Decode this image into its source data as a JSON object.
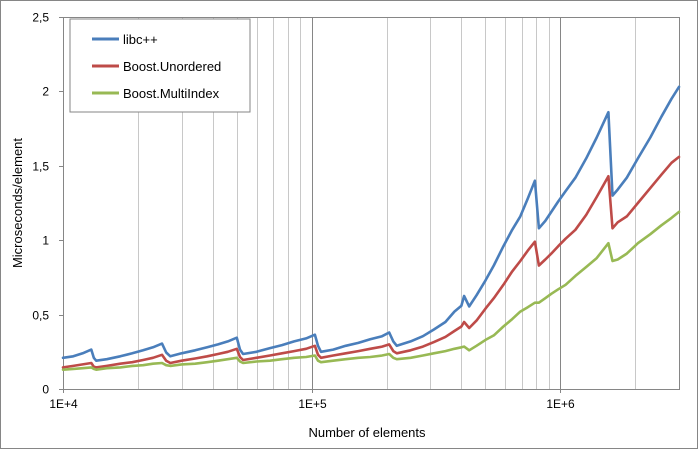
{
  "chart_data": {
    "type": "line",
    "xlabel": "Number of elements",
    "ylabel": "Microseconds/element",
    "x_scale": "log",
    "xlim": [
      10000,
      3000000
    ],
    "ylim": [
      0,
      2.5
    ],
    "x_tick_labels": [
      {
        "value": 10000,
        "label": "1E+4"
      },
      {
        "value": 100000,
        "label": "1E+5"
      },
      {
        "value": 1000000,
        "label": "1E+6"
      }
    ],
    "y_tick_labels": [
      {
        "value": 0,
        "label": "0"
      },
      {
        "value": 0.5,
        "label": "0,5"
      },
      {
        "value": 1,
        "label": "1"
      },
      {
        "value": 1.5,
        "label": "1,5"
      },
      {
        "value": 2,
        "label": "2"
      },
      {
        "value": 2.5,
        "label": "2,5"
      }
    ],
    "grid": "x major and minor gridlines",
    "legend_position": "top-left",
    "series": [
      {
        "name": "libc++",
        "color": "#4a7ebb",
        "points": [
          [
            10000,
            0.21
          ],
          [
            11000,
            0.22
          ],
          [
            12000,
            0.24
          ],
          [
            13000,
            0.265
          ],
          [
            13300,
            0.21
          ],
          [
            13600,
            0.19
          ],
          [
            15000,
            0.2
          ],
          [
            17000,
            0.22
          ],
          [
            19000,
            0.24
          ],
          [
            21000,
            0.26
          ],
          [
            23000,
            0.28
          ],
          [
            25000,
            0.305
          ],
          [
            26000,
            0.245
          ],
          [
            27000,
            0.22
          ],
          [
            30000,
            0.24
          ],
          [
            34000,
            0.26
          ],
          [
            38000,
            0.28
          ],
          [
            42000,
            0.3
          ],
          [
            46000,
            0.32
          ],
          [
            50000,
            0.345
          ],
          [
            51500,
            0.265
          ],
          [
            53000,
            0.235
          ],
          [
            60000,
            0.25
          ],
          [
            68000,
            0.275
          ],
          [
            76000,
            0.295
          ],
          [
            85000,
            0.32
          ],
          [
            95000,
            0.34
          ],
          [
            103000,
            0.365
          ],
          [
            106000,
            0.29
          ],
          [
            109000,
            0.25
          ],
          [
            122000,
            0.265
          ],
          [
            137000,
            0.29
          ],
          [
            154000,
            0.31
          ],
          [
            172000,
            0.335
          ],
          [
            192000,
            0.355
          ],
          [
            205000,
            0.38
          ],
          [
            213000,
            0.32
          ],
          [
            220000,
            0.29
          ],
          [
            250000,
            0.32
          ],
          [
            280000,
            0.355
          ],
          [
            310000,
            0.4
          ],
          [
            345000,
            0.45
          ],
          [
            375000,
            0.52
          ],
          [
            400000,
            0.56
          ],
          [
            410000,
            0.625
          ],
          [
            430000,
            0.555
          ],
          [
            460000,
            0.63
          ],
          [
            500000,
            0.73
          ],
          [
            540000,
            0.83
          ],
          [
            590000,
            0.96
          ],
          [
            640000,
            1.07
          ],
          [
            690000,
            1.16
          ],
          [
            740000,
            1.28
          ],
          [
            790000,
            1.4
          ],
          [
            820000,
            1.08
          ],
          [
            870000,
            1.13
          ],
          [
            920000,
            1.19
          ],
          [
            980000,
            1.26
          ],
          [
            1050000,
            1.33
          ],
          [
            1150000,
            1.42
          ],
          [
            1270000,
            1.55
          ],
          [
            1400000,
            1.69
          ],
          [
            1560000,
            1.86
          ],
          [
            1620000,
            1.3
          ],
          [
            1700000,
            1.34
          ],
          [
            1850000,
            1.42
          ],
          [
            2050000,
            1.55
          ],
          [
            2300000,
            1.69
          ],
          [
            2550000,
            1.83
          ],
          [
            2800000,
            1.95
          ],
          [
            3000000,
            2.03
          ]
        ]
      },
      {
        "name": "Boost.Unordered",
        "color": "#be4b48",
        "points": [
          [
            10000,
            0.145
          ],
          [
            11000,
            0.155
          ],
          [
            12000,
            0.165
          ],
          [
            13000,
            0.175
          ],
          [
            13300,
            0.15
          ],
          [
            13600,
            0.145
          ],
          [
            15000,
            0.155
          ],
          [
            17000,
            0.17
          ],
          [
            19000,
            0.18
          ],
          [
            21000,
            0.195
          ],
          [
            23000,
            0.21
          ],
          [
            25000,
            0.23
          ],
          [
            26000,
            0.19
          ],
          [
            27000,
            0.175
          ],
          [
            30000,
            0.19
          ],
          [
            34000,
            0.205
          ],
          [
            38000,
            0.22
          ],
          [
            42000,
            0.235
          ],
          [
            46000,
            0.25
          ],
          [
            50000,
            0.27
          ],
          [
            51500,
            0.215
          ],
          [
            53000,
            0.195
          ],
          [
            60000,
            0.21
          ],
          [
            68000,
            0.225
          ],
          [
            76000,
            0.24
          ],
          [
            85000,
            0.255
          ],
          [
            95000,
            0.27
          ],
          [
            103000,
            0.29
          ],
          [
            106000,
            0.23
          ],
          [
            109000,
            0.21
          ],
          [
            122000,
            0.225
          ],
          [
            137000,
            0.24
          ],
          [
            154000,
            0.255
          ],
          [
            172000,
            0.27
          ],
          [
            192000,
            0.285
          ],
          [
            205000,
            0.3
          ],
          [
            213000,
            0.255
          ],
          [
            220000,
            0.24
          ],
          [
            250000,
            0.26
          ],
          [
            280000,
            0.285
          ],
          [
            310000,
            0.315
          ],
          [
            345000,
            0.35
          ],
          [
            375000,
            0.39
          ],
          [
            400000,
            0.42
          ],
          [
            410000,
            0.45
          ],
          [
            430000,
            0.41
          ],
          [
            460000,
            0.46
          ],
          [
            500000,
            0.54
          ],
          [
            540000,
            0.61
          ],
          [
            590000,
            0.7
          ],
          [
            640000,
            0.79
          ],
          [
            690000,
            0.86
          ],
          [
            740000,
            0.93
          ],
          [
            790000,
            0.99
          ],
          [
            820000,
            0.83
          ],
          [
            870000,
            0.87
          ],
          [
            920000,
            0.91
          ],
          [
            980000,
            0.96
          ],
          [
            1050000,
            1.01
          ],
          [
            1150000,
            1.07
          ],
          [
            1270000,
            1.17
          ],
          [
            1400000,
            1.29
          ],
          [
            1560000,
            1.43
          ],
          [
            1620000,
            1.08
          ],
          [
            1700000,
            1.12
          ],
          [
            1850000,
            1.16
          ],
          [
            2050000,
            1.25
          ],
          [
            2300000,
            1.35
          ],
          [
            2550000,
            1.44
          ],
          [
            2800000,
            1.52
          ],
          [
            3000000,
            1.56
          ]
        ]
      },
      {
        "name": "Boost.MultiIndex",
        "color": "#98b954",
        "points": [
          [
            10000,
            0.13
          ],
          [
            11000,
            0.135
          ],
          [
            12000,
            0.14
          ],
          [
            13000,
            0.145
          ],
          [
            13300,
            0.135
          ],
          [
            13600,
            0.13
          ],
          [
            15000,
            0.14
          ],
          [
            17000,
            0.145
          ],
          [
            19000,
            0.155
          ],
          [
            21000,
            0.16
          ],
          [
            23000,
            0.17
          ],
          [
            25000,
            0.175
          ],
          [
            26000,
            0.16
          ],
          [
            27000,
            0.155
          ],
          [
            30000,
            0.165
          ],
          [
            34000,
            0.17
          ],
          [
            38000,
            0.18
          ],
          [
            42000,
            0.19
          ],
          [
            46000,
            0.2
          ],
          [
            50000,
            0.21
          ],
          [
            51500,
            0.185
          ],
          [
            53000,
            0.175
          ],
          [
            60000,
            0.185
          ],
          [
            68000,
            0.19
          ],
          [
            76000,
            0.2
          ],
          [
            85000,
            0.21
          ],
          [
            95000,
            0.215
          ],
          [
            103000,
            0.225
          ],
          [
            106000,
            0.19
          ],
          [
            109000,
            0.18
          ],
          [
            122000,
            0.19
          ],
          [
            137000,
            0.2
          ],
          [
            154000,
            0.21
          ],
          [
            172000,
            0.215
          ],
          [
            192000,
            0.225
          ],
          [
            205000,
            0.235
          ],
          [
            213000,
            0.21
          ],
          [
            220000,
            0.2
          ],
          [
            250000,
            0.21
          ],
          [
            280000,
            0.225
          ],
          [
            310000,
            0.24
          ],
          [
            345000,
            0.255
          ],
          [
            375000,
            0.27
          ],
          [
            400000,
            0.28
          ],
          [
            410000,
            0.285
          ],
          [
            430000,
            0.26
          ],
          [
            460000,
            0.29
          ],
          [
            500000,
            0.33
          ],
          [
            540000,
            0.36
          ],
          [
            590000,
            0.42
          ],
          [
            640000,
            0.47
          ],
          [
            690000,
            0.52
          ],
          [
            740000,
            0.55
          ],
          [
            790000,
            0.58
          ],
          [
            820000,
            0.58
          ],
          [
            870000,
            0.61
          ],
          [
            920000,
            0.64
          ],
          [
            980000,
            0.67
          ],
          [
            1050000,
            0.7
          ],
          [
            1150000,
            0.76
          ],
          [
            1270000,
            0.82
          ],
          [
            1400000,
            0.88
          ],
          [
            1560000,
            0.98
          ],
          [
            1620000,
            0.86
          ],
          [
            1700000,
            0.87
          ],
          [
            1850000,
            0.91
          ],
          [
            2050000,
            0.98
          ],
          [
            2300000,
            1.04
          ],
          [
            2550000,
            1.1
          ],
          [
            2800000,
            1.15
          ],
          [
            3000000,
            1.19
          ]
        ]
      }
    ]
  }
}
